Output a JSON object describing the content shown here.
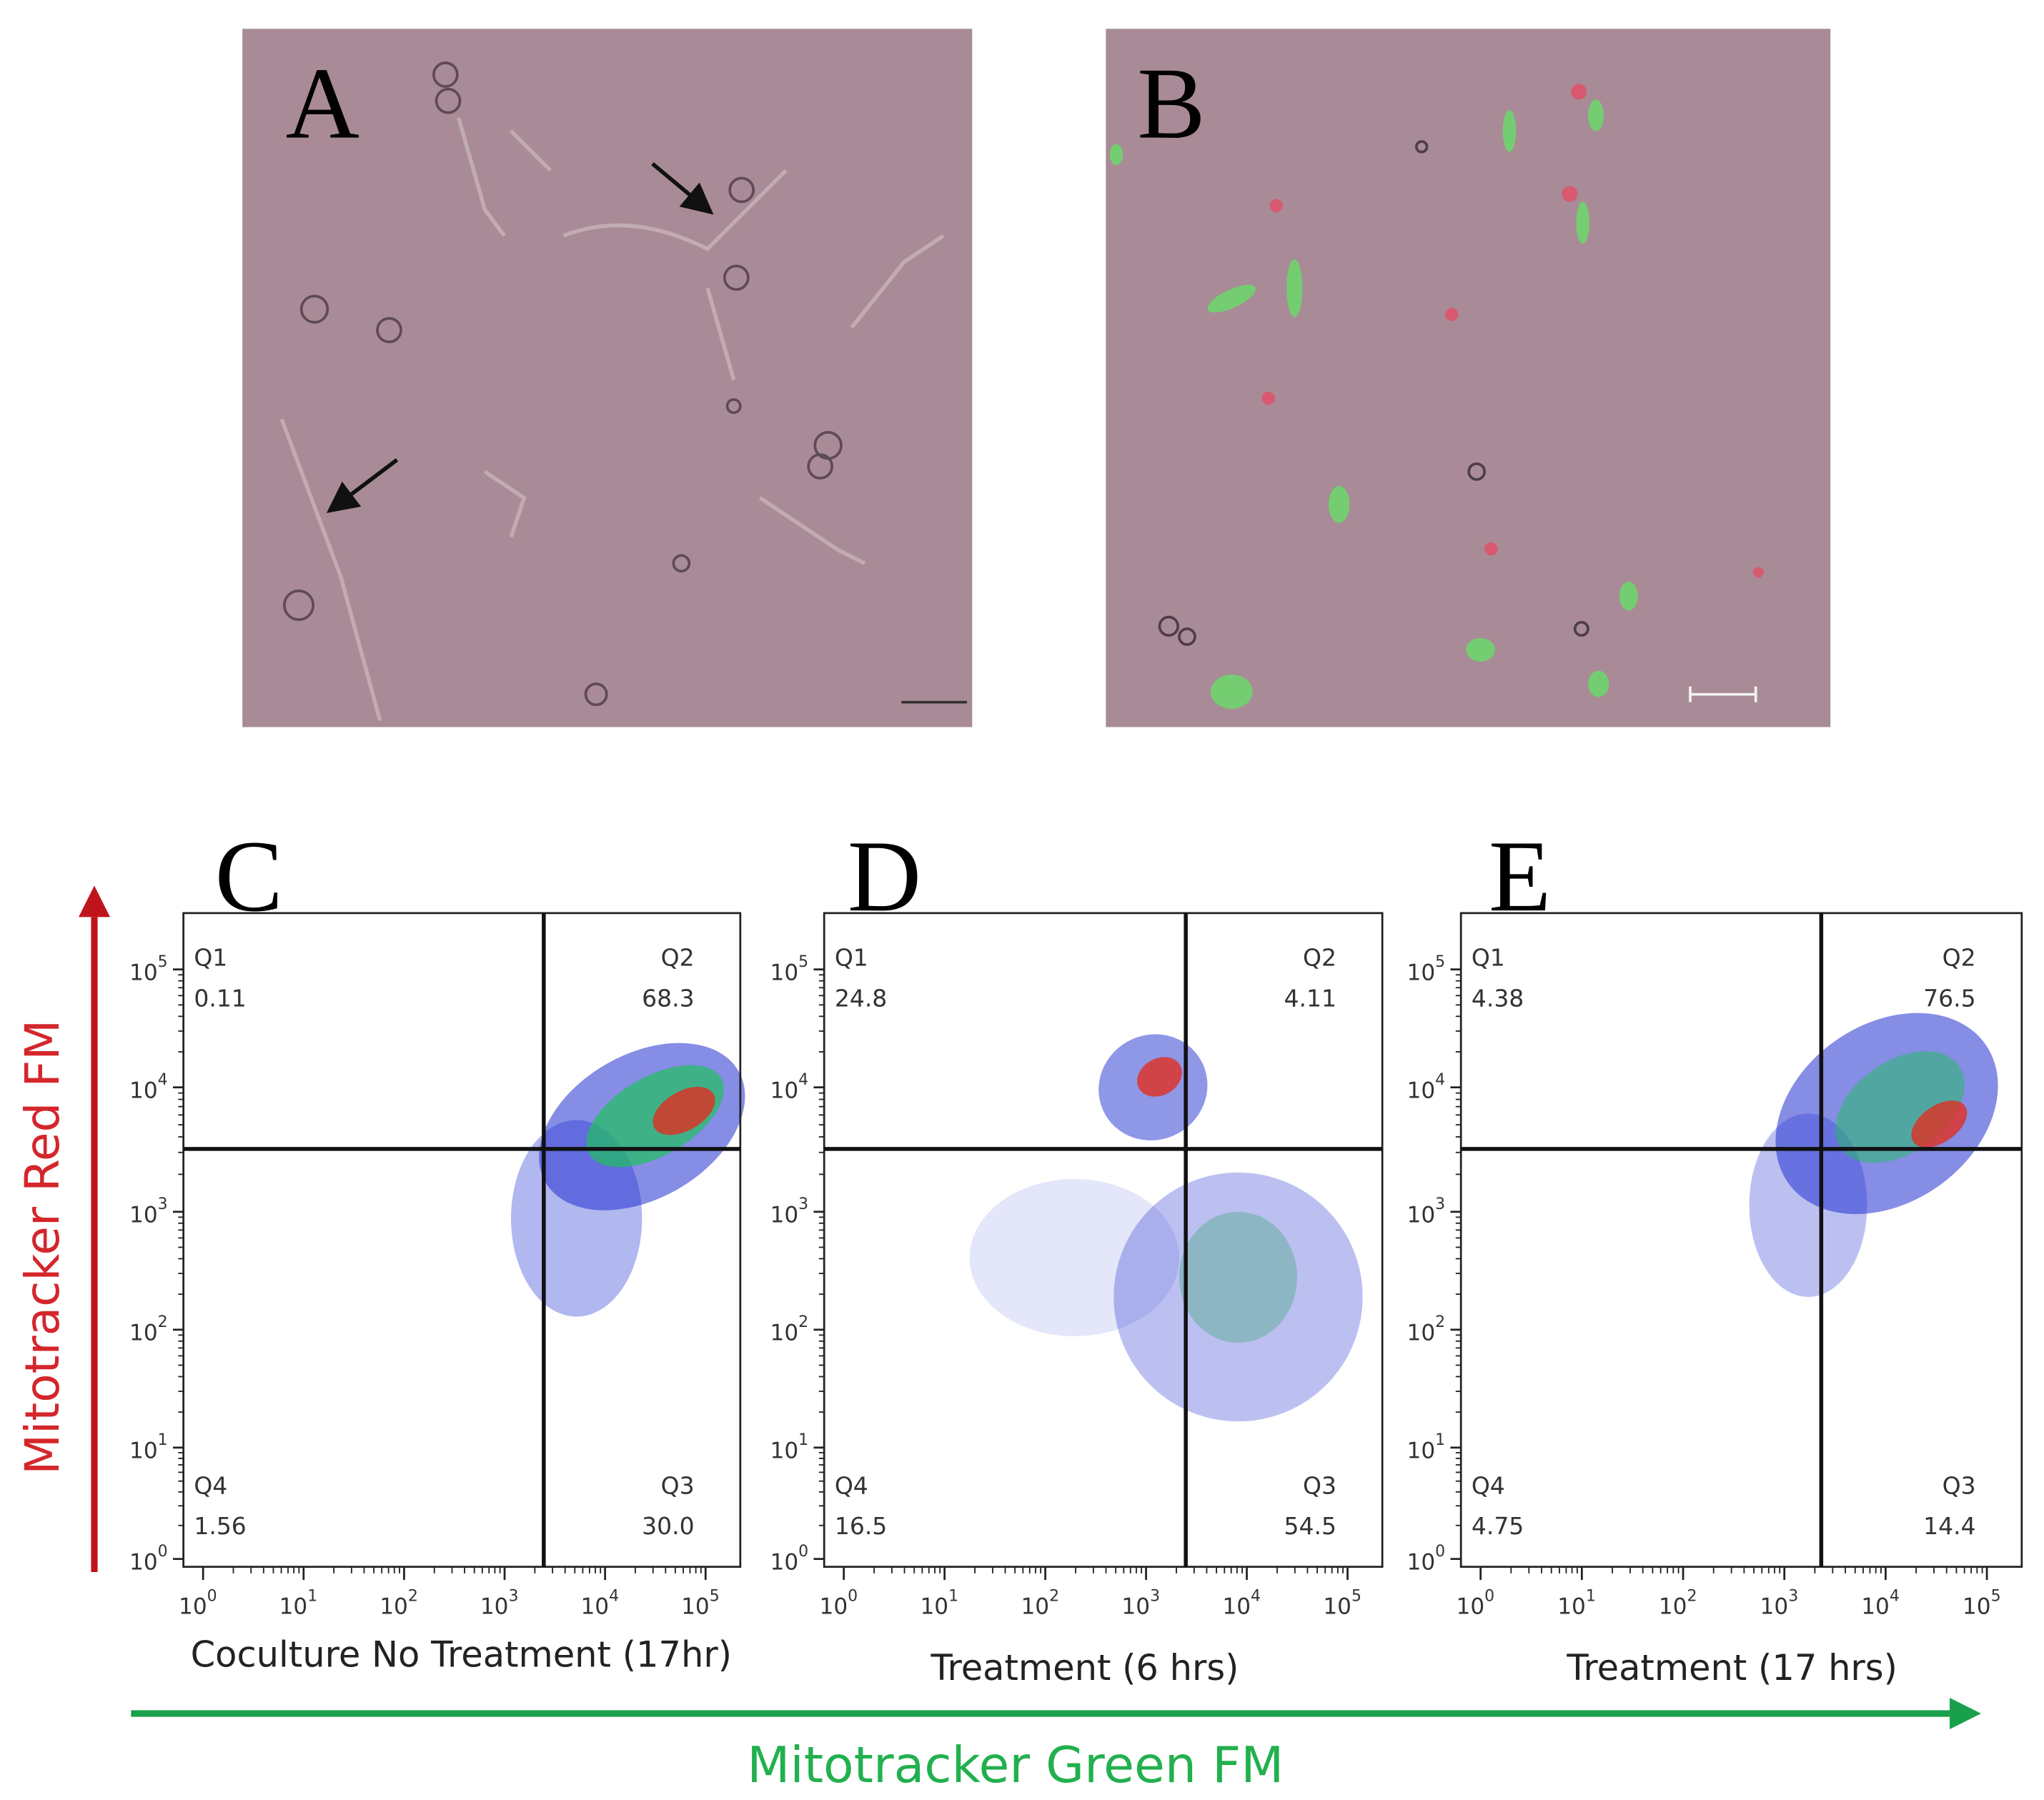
{
  "image_panels": [
    {
      "label": "A"
    },
    {
      "label": "B"
    }
  ],
  "plots": [
    {
      "label": "C",
      "x_title": "Coculture No Treatment (17hr)",
      "quadrants": [
        {
          "name": "Q1",
          "value": "0.11"
        },
        {
          "name": "Q2",
          "value": "68.3"
        },
        {
          "name": "Q3",
          "value": "30.0"
        },
        {
          "name": "Q4",
          "value": "1.56"
        }
      ]
    },
    {
      "label": "D",
      "x_title": "Treatment (6 hrs)",
      "quadrants": [
        {
          "name": "Q1",
          "value": "24.8"
        },
        {
          "name": "Q2",
          "value": "4.11"
        },
        {
          "name": "Q3",
          "value": "54.5"
        },
        {
          "name": "Q4",
          "value": "16.5"
        }
      ]
    },
    {
      "label": "E",
      "x_title": "Treatment (17 hrs)",
      "quadrants": [
        {
          "name": "Q1",
          "value": "4.38"
        },
        {
          "name": "Q2",
          "value": "76.5"
        },
        {
          "name": "Q3",
          "value": "14.4"
        },
        {
          "name": "Q4",
          "value": "4.75"
        }
      ]
    }
  ],
  "tick_base": "10",
  "tick_exponents": [
    "0",
    "1",
    "2",
    "3",
    "4",
    "5"
  ],
  "y_axis_title": "Mitotracker Red FM",
  "x_axis_title": "Mitotracker Green FM"
}
